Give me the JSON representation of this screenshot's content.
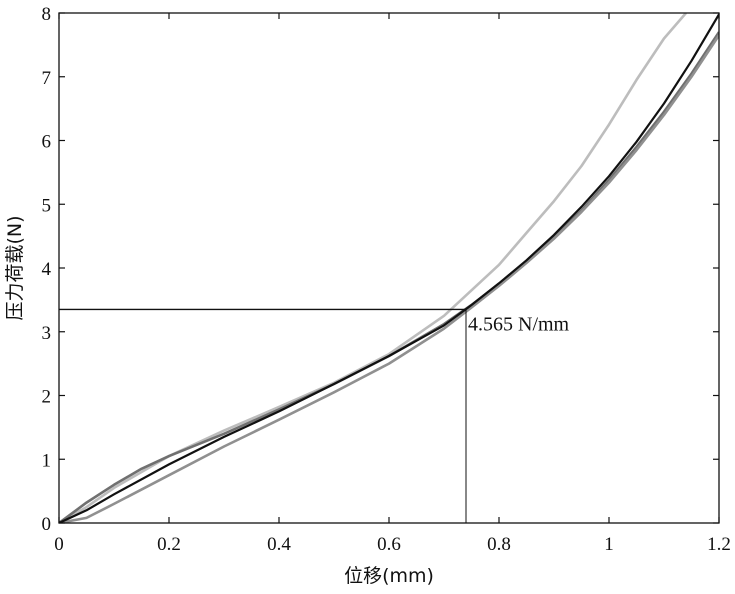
{
  "chart_data": {
    "type": "line",
    "xlabel": "位移(mm)",
    "ylabel": "压力荷载(N)",
    "xlim": [
      0,
      1.2
    ],
    "ylim": [
      0,
      8
    ],
    "x_ticks": [
      {
        "value": 0,
        "label": "0"
      },
      {
        "value": 0.2,
        "label": "0.2"
      },
      {
        "value": 0.4,
        "label": "0.4"
      },
      {
        "value": 0.6,
        "label": "0.6"
      },
      {
        "value": 0.8,
        "label": "0.8"
      },
      {
        "value": 1.0,
        "label": "1"
      },
      {
        "value": 1.2,
        "label": "1.2"
      }
    ],
    "y_ticks": [
      {
        "value": 0,
        "label": "0"
      },
      {
        "value": 1,
        "label": "1"
      },
      {
        "value": 2,
        "label": "2"
      },
      {
        "value": 3,
        "label": "3"
      },
      {
        "value": 4,
        "label": "4"
      },
      {
        "value": 5,
        "label": "5"
      },
      {
        "value": 6,
        "label": "6"
      },
      {
        "value": 7,
        "label": "7"
      },
      {
        "value": 8,
        "label": "8"
      }
    ],
    "grid": false,
    "series": [
      {
        "color": "#bdbdbd",
        "x": [
          0,
          0.05,
          0.1,
          0.2,
          0.3,
          0.4,
          0.5,
          0.6,
          0.7,
          0.75,
          0.8,
          0.85,
          0.9,
          0.95,
          1.0,
          1.05,
          1.1,
          1.14
        ],
        "y": [
          0,
          0.25,
          0.55,
          1.05,
          1.45,
          1.82,
          2.2,
          2.65,
          3.25,
          3.65,
          4.05,
          4.55,
          5.05,
          5.6,
          6.25,
          6.95,
          7.6,
          8.0
        ]
      },
      {
        "color": "#707070",
        "x": [
          0,
          0.05,
          0.1,
          0.15,
          0.2,
          0.3,
          0.4,
          0.5,
          0.6,
          0.7,
          0.75,
          0.8,
          0.85,
          0.9,
          0.95,
          1.0,
          1.05,
          1.1,
          1.15,
          1.2
        ],
        "y": [
          0,
          0.32,
          0.6,
          0.85,
          1.05,
          1.4,
          1.78,
          2.18,
          2.62,
          3.12,
          3.42,
          3.75,
          4.1,
          4.48,
          4.9,
          5.38,
          5.9,
          6.45,
          7.05,
          7.7
        ]
      },
      {
        "color": "#909090",
        "x": [
          0,
          0.05,
          0.1,
          0.2,
          0.3,
          0.4,
          0.5,
          0.6,
          0.7,
          0.75,
          0.8,
          0.85,
          0.9,
          0.95,
          1.0,
          1.05,
          1.1,
          1.15,
          1.2
        ],
        "y": [
          0,
          0.08,
          0.3,
          0.75,
          1.2,
          1.62,
          2.05,
          2.5,
          3.05,
          3.38,
          3.72,
          4.08,
          4.46,
          4.88,
          5.34,
          5.85,
          6.4,
          7.0,
          7.65
        ]
      },
      {
        "color": "#111111",
        "x": [
          0,
          0.05,
          0.1,
          0.2,
          0.3,
          0.4,
          0.5,
          0.6,
          0.7,
          0.75,
          0.8,
          0.85,
          0.9,
          0.95,
          1.0,
          1.05,
          1.1,
          1.15,
          1.2
        ],
        "y": [
          0,
          0.2,
          0.45,
          0.92,
          1.35,
          1.75,
          2.18,
          2.62,
          3.1,
          3.42,
          3.76,
          4.12,
          4.52,
          4.96,
          5.44,
          5.98,
          6.58,
          7.25,
          7.98
        ]
      }
    ],
    "reference_point": {
      "x": 0.74,
      "y": 3.35
    },
    "annotation": {
      "text": "4.565 N/mm",
      "x": 0.76,
      "y": 3.1
    }
  }
}
